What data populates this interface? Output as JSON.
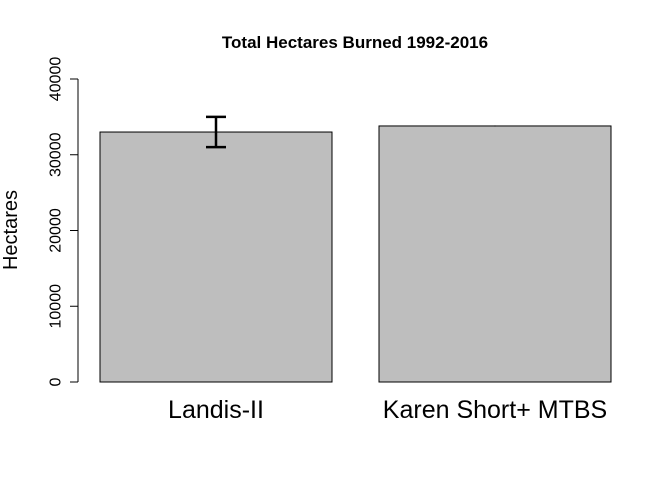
{
  "chart_data": {
    "type": "bar",
    "title": "Total Hectares Burned 1992-2016",
    "xlabel": "",
    "ylabel": "Hectares",
    "categories": [
      "Landis-II",
      "Karen Short+ MTBS"
    ],
    "values": [
      33000,
      33800
    ],
    "error_bars": [
      {
        "low": 31000,
        "high": 35000
      },
      {
        "low": 33800,
        "high": 33800
      }
    ],
    "ylim": [
      0,
      40000
    ],
    "yticks": [
      0,
      10000,
      20000,
      30000,
      40000
    ],
    "ytick_labels": [
      "0",
      "10000",
      "20000",
      "30000",
      "40000"
    ],
    "bar_color": "#bebebe",
    "grid": false,
    "legend": "none"
  }
}
